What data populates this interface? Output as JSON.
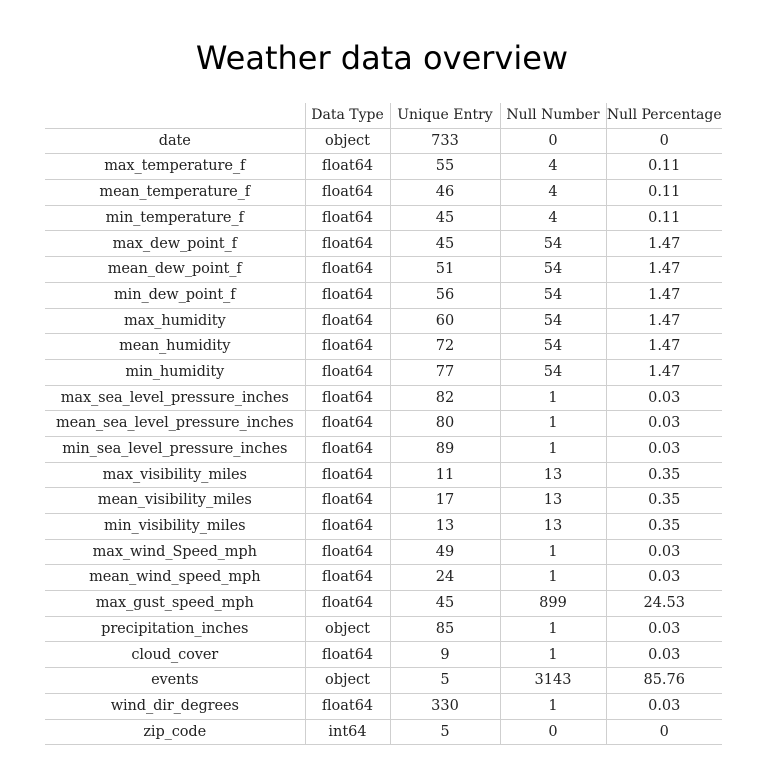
{
  "title": "Weather data overview",
  "table": {
    "headers": [
      "",
      "Data Type",
      "Unique Entry",
      "Null Number",
      "Null Percentage"
    ],
    "rows": [
      [
        "date",
        "object",
        "733",
        "0",
        "0"
      ],
      [
        "max_temperature_f",
        "float64",
        "55",
        "4",
        "0.11"
      ],
      [
        "mean_temperature_f",
        "float64",
        "46",
        "4",
        "0.11"
      ],
      [
        "min_temperature_f",
        "float64",
        "45",
        "4",
        "0.11"
      ],
      [
        "max_dew_point_f",
        "float64",
        "45",
        "54",
        "1.47"
      ],
      [
        "mean_dew_point_f",
        "float64",
        "51",
        "54",
        "1.47"
      ],
      [
        "min_dew_point_f",
        "float64",
        "56",
        "54",
        "1.47"
      ],
      [
        "max_humidity",
        "float64",
        "60",
        "54",
        "1.47"
      ],
      [
        "mean_humidity",
        "float64",
        "72",
        "54",
        "1.47"
      ],
      [
        "min_humidity",
        "float64",
        "77",
        "54",
        "1.47"
      ],
      [
        "max_sea_level_pressure_inches",
        "float64",
        "82",
        "1",
        "0.03"
      ],
      [
        "mean_sea_level_pressure_inches",
        "float64",
        "80",
        "1",
        "0.03"
      ],
      [
        "min_sea_level_pressure_inches",
        "float64",
        "89",
        "1",
        "0.03"
      ],
      [
        "max_visibility_miles",
        "float64",
        "11",
        "13",
        "0.35"
      ],
      [
        "mean_visibility_miles",
        "float64",
        "17",
        "13",
        "0.35"
      ],
      [
        "min_visibility_miles",
        "float64",
        "13",
        "13",
        "0.35"
      ],
      [
        "max_wind_Speed_mph",
        "float64",
        "49",
        "1",
        "0.03"
      ],
      [
        "mean_wind_speed_mph",
        "float64",
        "24",
        "1",
        "0.03"
      ],
      [
        "max_gust_speed_mph",
        "float64",
        "45",
        "899",
        "24.53"
      ],
      [
        "precipitation_inches",
        "object",
        "85",
        "1",
        "0.03"
      ],
      [
        "cloud_cover",
        "float64",
        "9",
        "1",
        "0.03"
      ],
      [
        "events",
        "object",
        "5",
        "3143",
        "85.76"
      ],
      [
        "wind_dir_degrees",
        "float64",
        "330",
        "1",
        "0.03"
      ],
      [
        "zip_code",
        "int64",
        "5",
        "0",
        "0"
      ]
    ]
  }
}
